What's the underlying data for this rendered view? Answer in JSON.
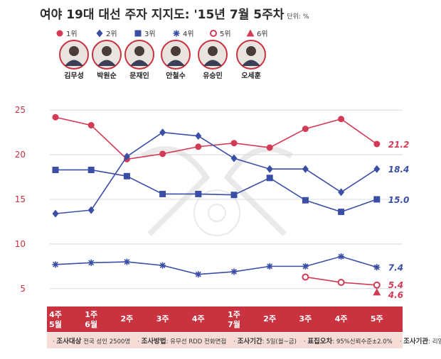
{
  "title": "여야 19대 대선 주자 지지도: '15년 7월 5주차",
  "unit": "단위: %",
  "candidates": [
    {
      "rank": "1위",
      "name": "김무성",
      "color": "#d23a55",
      "marker": "circle"
    },
    {
      "rank": "2위",
      "name": "박원순",
      "color": "#3b4ea6",
      "marker": "diamond"
    },
    {
      "rank": "3위",
      "name": "문재인",
      "color": "#3b4ea6",
      "marker": "square"
    },
    {
      "rank": "4위",
      "name": "안철수",
      "color": "#3b4ea6",
      "marker": "star"
    },
    {
      "rank": "5위",
      "name": "유승민",
      "color": "#d23a55",
      "marker": "open-circle"
    },
    {
      "rank": "6위",
      "name": "오세훈",
      "color": "#d23a55",
      "marker": "triangle"
    }
  ],
  "chart_data": {
    "type": "line",
    "categories": [
      "4주 5월",
      "1주 6월",
      "2주",
      "3주",
      "4주",
      "1주 7월",
      "2주",
      "3주",
      "4주",
      "5주"
    ],
    "category_lines": [
      [
        "4주",
        "5월"
      ],
      [
        "1주",
        "6월"
      ],
      [
        "2주"
      ],
      [
        "3주"
      ],
      [
        "4주"
      ],
      [
        "1주",
        "7월"
      ],
      [
        "2주"
      ],
      [
        "3주"
      ],
      [
        "4주"
      ],
      [
        "5주"
      ]
    ],
    "ylim": [
      3,
      27
    ],
    "yticks": [
      5,
      10,
      15,
      20,
      25
    ],
    "series": [
      {
        "name": "김무성",
        "rank": "1위",
        "values": [
          24.2,
          23.3,
          19.5,
          20.1,
          20.9,
          21.3,
          20.8,
          22.9,
          24.0,
          21.2
        ],
        "last_label": "21.2",
        "color": "#d23a55",
        "marker": "circle"
      },
      {
        "name": "박원순",
        "rank": "2위",
        "values": [
          13.4,
          13.8,
          19.8,
          22.5,
          22.1,
          19.6,
          18.4,
          18.4,
          15.8,
          18.4
        ],
        "last_label": "18.4",
        "color": "#3b4ea6",
        "marker": "diamond"
      },
      {
        "name": "문재인",
        "rank": "3위",
        "values": [
          18.3,
          18.3,
          17.6,
          15.6,
          15.6,
          15.5,
          17.4,
          14.9,
          13.6,
          15.0
        ],
        "last_label": "15.0",
        "color": "#3b4ea6",
        "marker": "square"
      },
      {
        "name": "안철수",
        "rank": "4위",
        "values": [
          7.7,
          7.9,
          8.0,
          7.6,
          6.6,
          6.9,
          7.5,
          7.5,
          8.6,
          7.4
        ],
        "last_label": "7.4",
        "color": "#3b4ea6",
        "marker": "star"
      },
      {
        "name": "유승민",
        "rank": "5위",
        "values": [
          null,
          null,
          null,
          null,
          null,
          null,
          null,
          6.3,
          5.7,
          5.4
        ],
        "last_label": "5.4",
        "color": "#d23a55",
        "marker": "open-circle"
      },
      {
        "name": "오세훈",
        "rank": "6위",
        "values": [
          null,
          null,
          null,
          null,
          null,
          null,
          null,
          null,
          null,
          4.6
        ],
        "last_label": "4.6",
        "color": "#d23a55",
        "marker": "triangle"
      }
    ],
    "grid": true,
    "legend": "top"
  },
  "footer": {
    "items": [
      {
        "label": "조사대상",
        "value": "전국 성인 2500명"
      },
      {
        "label": "조사방법",
        "value": "유무선 RDD 전화면접"
      },
      {
        "label": "조사기간",
        "value": "5일(월~금)"
      },
      {
        "label": "표집오차",
        "value": "95%신뢰수준±2.0%"
      },
      {
        "label": "조사기관",
        "value": "리얼미터"
      }
    ]
  }
}
